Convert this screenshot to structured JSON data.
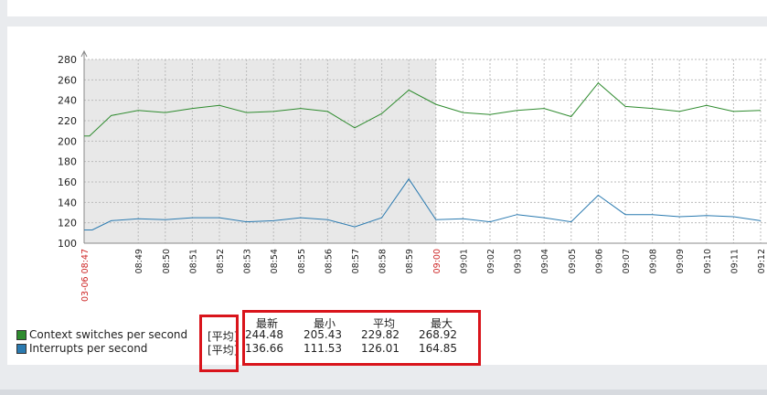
{
  "chart_data": {
    "type": "line",
    "title": "",
    "xlabel": "",
    "ylabel": "",
    "ylim": [
      100,
      280
    ],
    "yticks": [
      100,
      120,
      140,
      160,
      180,
      200,
      220,
      240,
      260,
      280
    ],
    "x": [
      "03-06 08:47",
      "08:49",
      "08:50",
      "08:51",
      "08:52",
      "08:53",
      "08:54",
      "08:55",
      "08:56",
      "08:57",
      "08:58",
      "08:59",
      "09:00",
      "09:01",
      "09:02",
      "09:03",
      "09:04",
      "09:05",
      "09:06",
      "09:07",
      "09:08",
      "09:09",
      "09:10",
      "09:11",
      "09:12"
    ],
    "highlight_ticks": [
      "03-06 08:47",
      "09:00"
    ],
    "grid": true,
    "shaded_range": [
      "03-06 08:47",
      "09:00"
    ],
    "series": [
      {
        "name": "Context switches per second",
        "color": "#2e8b2e",
        "points": [
          [
            0,
            205
          ],
          [
            0.2,
            205
          ],
          [
            1,
            225
          ],
          [
            2,
            230
          ],
          [
            3,
            228
          ],
          [
            4,
            232
          ],
          [
            5,
            235
          ],
          [
            6,
            228
          ],
          [
            7,
            229
          ],
          [
            8,
            232
          ],
          [
            9,
            229
          ],
          [
            10,
            213
          ],
          [
            11,
            227
          ],
          [
            12,
            250
          ],
          [
            13,
            236
          ],
          [
            14,
            228
          ],
          [
            15,
            226
          ],
          [
            16,
            230
          ],
          [
            17,
            232
          ],
          [
            18,
            224
          ],
          [
            19,
            257
          ],
          [
            20,
            234
          ],
          [
            21,
            232
          ],
          [
            22,
            229
          ],
          [
            23,
            235
          ],
          [
            24,
            229
          ],
          [
            25,
            230
          ]
        ]
      },
      {
        "name": "Interrupts per second",
        "color": "#2a7ab0",
        "points": [
          [
            0,
            113
          ],
          [
            0.3,
            113
          ],
          [
            1,
            122
          ],
          [
            2,
            124
          ],
          [
            3,
            123
          ],
          [
            4,
            125
          ],
          [
            5,
            125
          ],
          [
            6,
            121
          ],
          [
            7,
            122
          ],
          [
            8,
            125
          ],
          [
            9,
            123
          ],
          [
            10,
            116
          ],
          [
            11,
            125
          ],
          [
            12,
            163
          ],
          [
            13,
            123
          ],
          [
            14,
            124
          ],
          [
            15,
            121
          ],
          [
            16,
            128
          ],
          [
            17,
            125
          ],
          [
            18,
            121
          ],
          [
            19,
            147
          ],
          [
            20,
            128
          ],
          [
            21,
            128
          ],
          [
            22,
            126
          ],
          [
            23,
            127
          ],
          [
            24,
            126
          ],
          [
            25,
            122
          ]
        ]
      }
    ]
  },
  "legend": {
    "items": [
      {
        "label": "Context switches per second",
        "color": "#2e8b2e",
        "func": "[平均]"
      },
      {
        "label": "Interrupts per second",
        "color": "#2a7ab0",
        "func": "[平均]"
      }
    ]
  },
  "stats": {
    "headers": [
      "最新",
      "最小",
      "平均",
      "最大"
    ],
    "rows": [
      [
        "244.48",
        "205.43",
        "229.82",
        "268.92"
      ],
      [
        "136.66",
        "111.53",
        "126.01",
        "164.85"
      ]
    ]
  }
}
